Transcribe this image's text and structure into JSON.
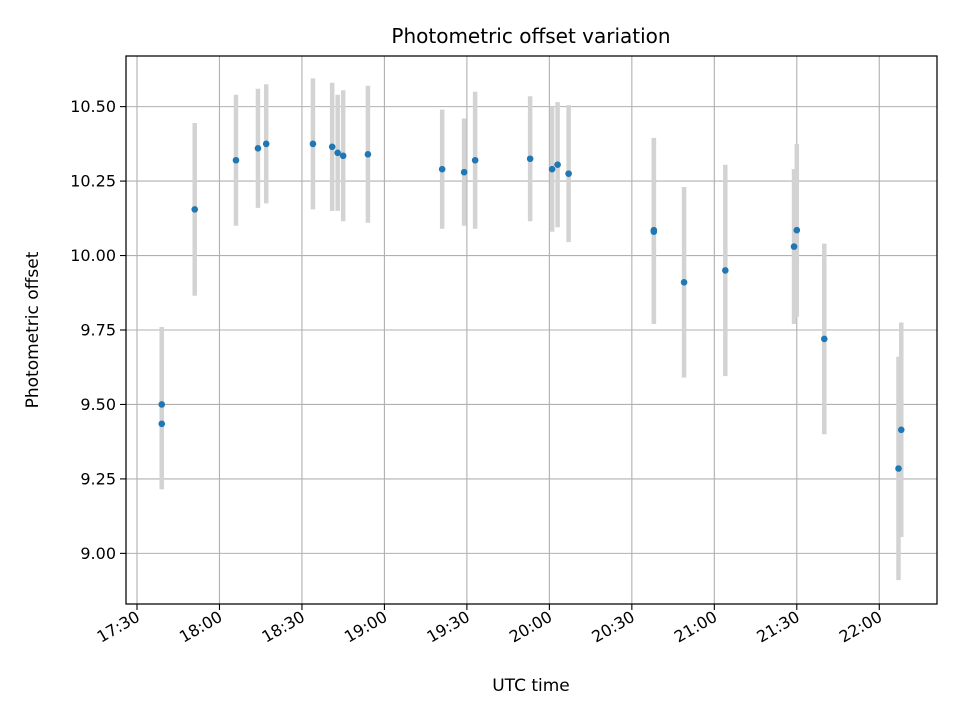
{
  "chart_data": {
    "type": "scatter",
    "title": "Photometric offset variation",
    "xlabel": "UTC time",
    "ylabel": "Photometric offset",
    "x_axis": "time",
    "xlim": [
      "17:26",
      "22:21"
    ],
    "ylim": [
      8.83,
      10.67
    ],
    "xticks": [
      "17:30",
      "18:00",
      "18:30",
      "19:00",
      "19:30",
      "20:00",
      "20:30",
      "21:00",
      "21:30",
      "22:00"
    ],
    "yticks": [
      "9.00",
      "9.25",
      "9.50",
      "9.75",
      "10.00",
      "10.25",
      "10.50"
    ],
    "grid": true,
    "legend": "none",
    "colors": {
      "points": "#1f77b4",
      "errorbars": "#d3d3d3",
      "grid": "#b0b0b0"
    },
    "series": [
      {
        "points": [
          {
            "x": "17:39",
            "y": 9.435,
            "err": 0.22
          },
          {
            "x": "17:39",
            "y": 9.5,
            "err": 0.26
          },
          {
            "x": "17:51",
            "y": 10.155,
            "err": 0.29
          },
          {
            "x": "18:06",
            "y": 10.32,
            "err": 0.22
          },
          {
            "x": "18:14",
            "y": 10.36,
            "err": 0.2
          },
          {
            "x": "18:17",
            "y": 10.375,
            "err": 0.2
          },
          {
            "x": "18:34",
            "y": 10.375,
            "err": 0.22
          },
          {
            "x": "18:41",
            "y": 10.365,
            "err": 0.215
          },
          {
            "x": "18:43",
            "y": 10.345,
            "err": 0.195
          },
          {
            "x": "18:45",
            "y": 10.335,
            "err": 0.22
          },
          {
            "x": "18:54",
            "y": 10.34,
            "err": 0.23
          },
          {
            "x": "19:21",
            "y": 10.29,
            "err": 0.2
          },
          {
            "x": "19:29",
            "y": 10.28,
            "err": 0.18
          },
          {
            "x": "19:33",
            "y": 10.32,
            "err": 0.23
          },
          {
            "x": "19:53",
            "y": 10.325,
            "err": 0.21
          },
          {
            "x": "20:01",
            "y": 10.29,
            "err": 0.21
          },
          {
            "x": "20:03",
            "y": 10.305,
            "err": 0.21
          },
          {
            "x": "20:07",
            "y": 10.275,
            "err": 0.23
          },
          {
            "x": "20:38",
            "y": 10.085,
            "err": 0.31
          },
          {
            "x": "20:38",
            "y": 10.08,
            "err": 0.31
          },
          {
            "x": "20:49",
            "y": 9.91,
            "err": 0.32
          },
          {
            "x": "21:04",
            "y": 9.95,
            "err": 0.355
          },
          {
            "x": "21:29",
            "y": 10.03,
            "err": 0.26
          },
          {
            "x": "21:30",
            "y": 10.085,
            "err": 0.29
          },
          {
            "x": "21:40",
            "y": 9.72,
            "err": 0.32
          },
          {
            "x": "22:07",
            "y": 9.285,
            "err": 0.375
          },
          {
            "x": "22:08",
            "y": 9.415,
            "err": 0.36
          }
        ]
      }
    ]
  }
}
